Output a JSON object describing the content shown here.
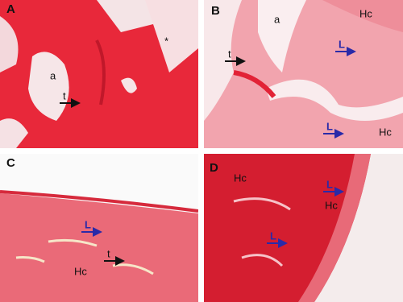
{
  "panels": [
    {
      "label": "A",
      "annotations": [
        {
          "text": "a"
        },
        {
          "text": "t"
        },
        {
          "text": "*"
        }
      ]
    },
    {
      "label": "B",
      "annotations": [
        {
          "text": "a"
        },
        {
          "text": "Hc"
        },
        {
          "text": "t"
        },
        {
          "text": "L"
        },
        {
          "text": "L"
        },
        {
          "text": "Hc"
        }
      ]
    },
    {
      "label": "C",
      "annotations": [
        {
          "text": "L"
        },
        {
          "text": "t"
        },
        {
          "text": "Hc"
        }
      ]
    },
    {
      "label": "D",
      "annotations": [
        {
          "text": "Hc"
        },
        {
          "text": "L"
        },
        {
          "text": "Hc"
        },
        {
          "text": "L"
        }
      ]
    }
  ]
}
